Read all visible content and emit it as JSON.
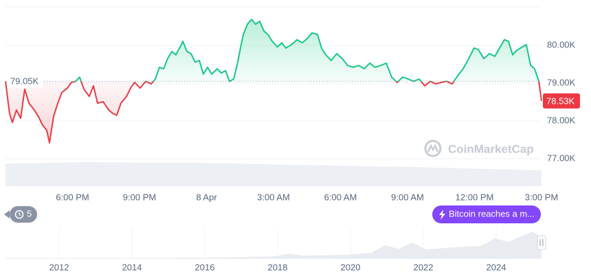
{
  "chart_data": {
    "type": "line",
    "x": [
      0,
      0.18,
      0.31,
      0.49,
      0.68,
      0.86,
      1.05,
      1.29,
      1.48,
      1.66,
      1.85,
      1.97,
      2.15,
      2.34,
      2.52,
      2.77,
      2.95,
      3.14,
      3.32,
      3.51,
      3.75,
      3.94,
      4.12,
      4.37,
      4.62,
      4.8,
      4.98,
      5.17,
      5.42,
      5.6,
      5.78,
      6.03,
      6.28,
      6.52,
      6.71,
      6.89,
      7.08,
      7.26,
      7.45,
      7.63,
      7.82,
      7.94,
      8.12,
      8.31,
      8.49,
      8.68,
      8.86,
      9.05,
      9.23,
      9.48,
      9.66,
      9.85,
      10.03,
      10.22,
      10.4,
      10.52,
      10.65,
      10.83,
      11.02,
      11.2,
      11.38,
      11.57,
      11.75,
      11.94,
      12.18,
      12.37,
      12.55,
      12.8,
      13.05,
      13.29,
      13.54,
      13.72,
      13.97,
      14.15,
      14.34,
      14.58,
      14.83,
      15.08,
      15.32,
      15.57,
      15.82,
      16.06,
      16.31,
      16.55,
      16.8,
      17.05,
      17.29,
      17.54,
      17.78,
      18.03,
      18.28,
      18.52,
      18.77,
      19.02,
      19.26,
      19.51,
      19.75,
      20.0,
      20.25,
      20.49,
      20.74,
      20.98,
      21.17,
      21.42,
      21.66,
      21.91,
      22.15,
      22.34,
      22.52,
      22.71,
      22.89,
      23.14,
      23.32,
      23.51,
      23.69,
      23.88,
      24.0
    ],
    "series": [
      {
        "color": "#16c784",
        "below_color": "#ea3943",
        "values": [
          79.05,
          78.2,
          77.96,
          78.29,
          78.07,
          78.84,
          78.47,
          78.29,
          78.11,
          77.89,
          77.75,
          77.42,
          78.11,
          78.47,
          78.75,
          78.87,
          79.02,
          79.05,
          79.16,
          78.84,
          78.65,
          78.93,
          78.47,
          78.51,
          78.29,
          78.2,
          78.15,
          78.47,
          78.65,
          78.87,
          79.02,
          78.87,
          79.05,
          78.98,
          79.11,
          79.42,
          79.38,
          79.65,
          79.84,
          79.75,
          79.96,
          80.11,
          79.84,
          79.78,
          79.56,
          79.6,
          79.24,
          79.42,
          79.24,
          79.38,
          79.27,
          79.33,
          79.05,
          79.11,
          79.56,
          79.93,
          80.29,
          80.56,
          80.69,
          80.56,
          80.64,
          80.38,
          80.29,
          80.11,
          79.96,
          80.07,
          79.93,
          80.02,
          80.15,
          80.07,
          80.2,
          80.33,
          80.29,
          79.93,
          79.75,
          79.6,
          79.78,
          79.65,
          79.47,
          79.42,
          79.47,
          79.38,
          79.53,
          79.42,
          79.47,
          79.53,
          79.16,
          79.02,
          79.16,
          79.11,
          79.05,
          79.11,
          78.93,
          79.05,
          78.98,
          79.02,
          79.05,
          78.98,
          79.2,
          79.38,
          79.65,
          79.93,
          79.89,
          79.65,
          79.78,
          79.71,
          79.96,
          80.15,
          80.11,
          79.75,
          79.87,
          79.96,
          80.02,
          79.47,
          79.38,
          79.05,
          78.53
        ]
      }
    ],
    "baseline": {
      "value": 79.05,
      "label": "79.05K"
    },
    "last_price": {
      "value": 78.53,
      "label": "78.53K"
    },
    "xlim": [
      0,
      24
    ],
    "xticks": [
      {
        "value": 3,
        "label": "6:00 PM"
      },
      {
        "value": 6,
        "label": "9:00 PM"
      },
      {
        "value": 9,
        "label": "8 Apr"
      },
      {
        "value": 12,
        "label": "3:00 AM"
      },
      {
        "value": 15,
        "label": "6:00 AM"
      },
      {
        "value": 18,
        "label": "9:00 AM"
      },
      {
        "value": 21,
        "label": "12:00 PM"
      },
      {
        "value": 24,
        "label": "3:00 PM"
      }
    ],
    "ylim": [
      76.29,
      81.02
    ],
    "yticks": [
      {
        "value": 77,
        "label": "77.00K"
      },
      {
        "value": 78,
        "label": "78.00K"
      },
      {
        "value": 79,
        "label": "79.00K"
      },
      {
        "value": 80,
        "label": "80.00K"
      }
    ],
    "grid": true,
    "watermark": "CoinMarketCap"
  },
  "history_badge": "5",
  "event_button": "Bitcoin reaches a m...",
  "navigator": {
    "years": [
      "2012",
      "2014",
      "2016",
      "2018",
      "2020",
      "2022",
      "2024"
    ]
  }
}
